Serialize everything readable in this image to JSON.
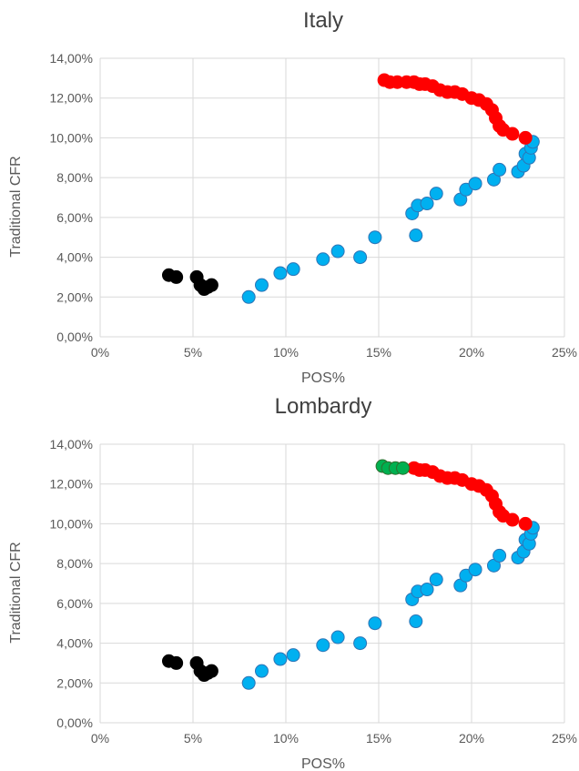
{
  "chart_data": [
    {
      "type": "scatter",
      "title": "Italy",
      "xlabel": "POS%",
      "ylabel": "Traditional CFR",
      "xlim": [
        0,
        25
      ],
      "ylim": [
        0,
        14
      ],
      "x_ticks": [
        "0%",
        "5%",
        "10%",
        "15%",
        "20%",
        "25%"
      ],
      "y_ticks": [
        "0,00%",
        "2,00%",
        "4,00%",
        "6,00%",
        "8,00%",
        "10,00%",
        "12,00%",
        "14,00%"
      ],
      "grid": true,
      "series": [
        {
          "color": "#000000",
          "points": [
            [
              3.7,
              3.1
            ],
            [
              4.1,
              3.0
            ],
            [
              5.2,
              3.0
            ],
            [
              5.4,
              2.6
            ],
            [
              5.6,
              2.4
            ],
            [
              5.8,
              2.5
            ],
            [
              6.0,
              2.6
            ]
          ]
        },
        {
          "color": "#00b0f0",
          "points": [
            [
              8.0,
              2.0
            ],
            [
              8.7,
              2.6
            ],
            [
              9.7,
              3.2
            ],
            [
              10.4,
              3.4
            ],
            [
              12.0,
              3.9
            ],
            [
              12.8,
              4.3
            ],
            [
              14.0,
              4.0
            ],
            [
              14.8,
              5.0
            ],
            [
              16.8,
              6.2
            ],
            [
              17.1,
              6.6
            ],
            [
              17.0,
              5.1
            ],
            [
              17.6,
              6.7
            ],
            [
              18.1,
              7.2
            ],
            [
              19.4,
              6.9
            ],
            [
              19.7,
              7.4
            ],
            [
              20.2,
              7.7
            ],
            [
              21.2,
              7.9
            ],
            [
              21.5,
              8.4
            ],
            [
              22.5,
              8.3
            ],
            [
              22.8,
              8.6
            ],
            [
              22.9,
              9.2
            ],
            [
              23.1,
              9.0
            ],
            [
              23.2,
              9.5
            ],
            [
              23.3,
              9.8
            ]
          ]
        },
        {
          "color": "#ff0000",
          "points": [
            [
              15.3,
              12.9
            ],
            [
              15.6,
              12.8
            ],
            [
              16.0,
              12.8
            ],
            [
              16.5,
              12.8
            ],
            [
              16.9,
              12.8
            ],
            [
              17.2,
              12.7
            ],
            [
              17.5,
              12.7
            ],
            [
              17.9,
              12.6
            ],
            [
              18.3,
              12.4
            ],
            [
              18.7,
              12.3
            ],
            [
              19.1,
              12.3
            ],
            [
              19.5,
              12.2
            ],
            [
              20.0,
              12.0
            ],
            [
              20.4,
              11.9
            ],
            [
              20.8,
              11.7
            ],
            [
              21.1,
              11.4
            ],
            [
              21.3,
              11.0
            ],
            [
              21.5,
              10.6
            ],
            [
              21.7,
              10.4
            ],
            [
              22.2,
              10.2
            ],
            [
              22.9,
              10.0
            ]
          ]
        }
      ]
    },
    {
      "type": "scatter",
      "title": "Lombardy",
      "xlabel": "POS%",
      "ylabel": "Traditional CFR",
      "xlim": [
        0,
        25
      ],
      "ylim": [
        0,
        14
      ],
      "x_ticks": [
        "0%",
        "5%",
        "10%",
        "15%",
        "20%",
        "25%"
      ],
      "y_ticks": [
        "0,00%",
        "2,00%",
        "4,00%",
        "6,00%",
        "8,00%",
        "10,00%",
        "12,00%",
        "14,00%"
      ],
      "grid": true,
      "series": [
        {
          "color": "#000000",
          "points": [
            [
              3.7,
              3.1
            ],
            [
              4.1,
              3.0
            ],
            [
              5.2,
              3.0
            ],
            [
              5.4,
              2.6
            ],
            [
              5.6,
              2.4
            ],
            [
              5.8,
              2.5
            ],
            [
              6.0,
              2.6
            ]
          ]
        },
        {
          "color": "#00b0f0",
          "points": [
            [
              8.0,
              2.0
            ],
            [
              8.7,
              2.6
            ],
            [
              9.7,
              3.2
            ],
            [
              10.4,
              3.4
            ],
            [
              12.0,
              3.9
            ],
            [
              12.8,
              4.3
            ],
            [
              14.0,
              4.0
            ],
            [
              14.8,
              5.0
            ],
            [
              16.8,
              6.2
            ],
            [
              17.1,
              6.6
            ],
            [
              17.0,
              5.1
            ],
            [
              17.6,
              6.7
            ],
            [
              18.1,
              7.2
            ],
            [
              19.4,
              6.9
            ],
            [
              19.7,
              7.4
            ],
            [
              20.2,
              7.7
            ],
            [
              21.2,
              7.9
            ],
            [
              21.5,
              8.4
            ],
            [
              22.5,
              8.3
            ],
            [
              22.8,
              8.6
            ],
            [
              22.9,
              9.2
            ],
            [
              23.1,
              9.0
            ],
            [
              23.2,
              9.5
            ],
            [
              23.3,
              9.8
            ]
          ]
        },
        {
          "color": "#ff0000",
          "points": [
            [
              16.9,
              12.8
            ],
            [
              17.2,
              12.7
            ],
            [
              17.5,
              12.7
            ],
            [
              17.9,
              12.6
            ],
            [
              18.3,
              12.4
            ],
            [
              18.7,
              12.3
            ],
            [
              19.1,
              12.3
            ],
            [
              19.5,
              12.2
            ],
            [
              20.0,
              12.0
            ],
            [
              20.4,
              11.9
            ],
            [
              20.8,
              11.7
            ],
            [
              21.1,
              11.4
            ],
            [
              21.3,
              11.0
            ],
            [
              21.5,
              10.6
            ],
            [
              21.7,
              10.4
            ],
            [
              22.2,
              10.2
            ],
            [
              22.9,
              10.0
            ]
          ]
        },
        {
          "color": "#00b050",
          "points": [
            [
              15.2,
              12.9
            ],
            [
              15.5,
              12.8
            ],
            [
              15.9,
              12.8
            ],
            [
              16.3,
              12.8
            ]
          ]
        }
      ]
    }
  ]
}
